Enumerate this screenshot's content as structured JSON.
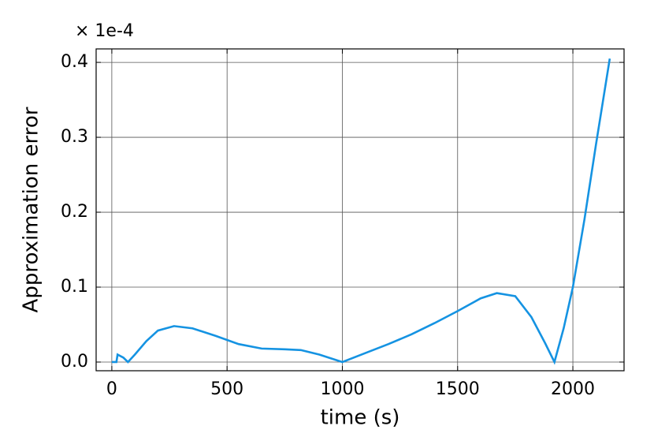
{
  "chart_data": {
    "type": "line",
    "offset_label": "× 1e-4",
    "xlabel": "time (s)",
    "ylabel": "Approximation error",
    "x": [
      0,
      20,
      25,
      50,
      70,
      100,
      150,
      200,
      270,
      350,
      450,
      550,
      650,
      750,
      820,
      900,
      1000,
      1100,
      1200,
      1300,
      1400,
      1500,
      1600,
      1670,
      1750,
      1820,
      1880,
      1920,
      1960,
      2000,
      2050,
      2100,
      2160
    ],
    "series": [
      {
        "color": "#1593e2",
        "values": [
          0,
          0,
          0.01,
          0.006,
          0,
          0.01,
          0.028,
          0.042,
          0.048,
          0.045,
          0.035,
          0.024,
          0.018,
          0.017,
          0.016,
          0.01,
          0,
          0.012,
          0.024,
          0.037,
          0.052,
          0.068,
          0.085,
          0.092,
          0.088,
          0.06,
          0.025,
          0,
          0.045,
          0.1,
          0.19,
          0.29,
          0.405
        ]
      }
    ],
    "xlim": [
      -68,
      2222
    ],
    "xticks": [
      0,
      500,
      1000,
      1500,
      2000
    ],
    "ylim": [
      -0.0116,
      0.418
    ],
    "yticks": [
      {
        "value": 0,
        "label": "0.0"
      },
      0.1,
      0.2,
      0.3,
      0.4
    ],
    "grid": true
  }
}
